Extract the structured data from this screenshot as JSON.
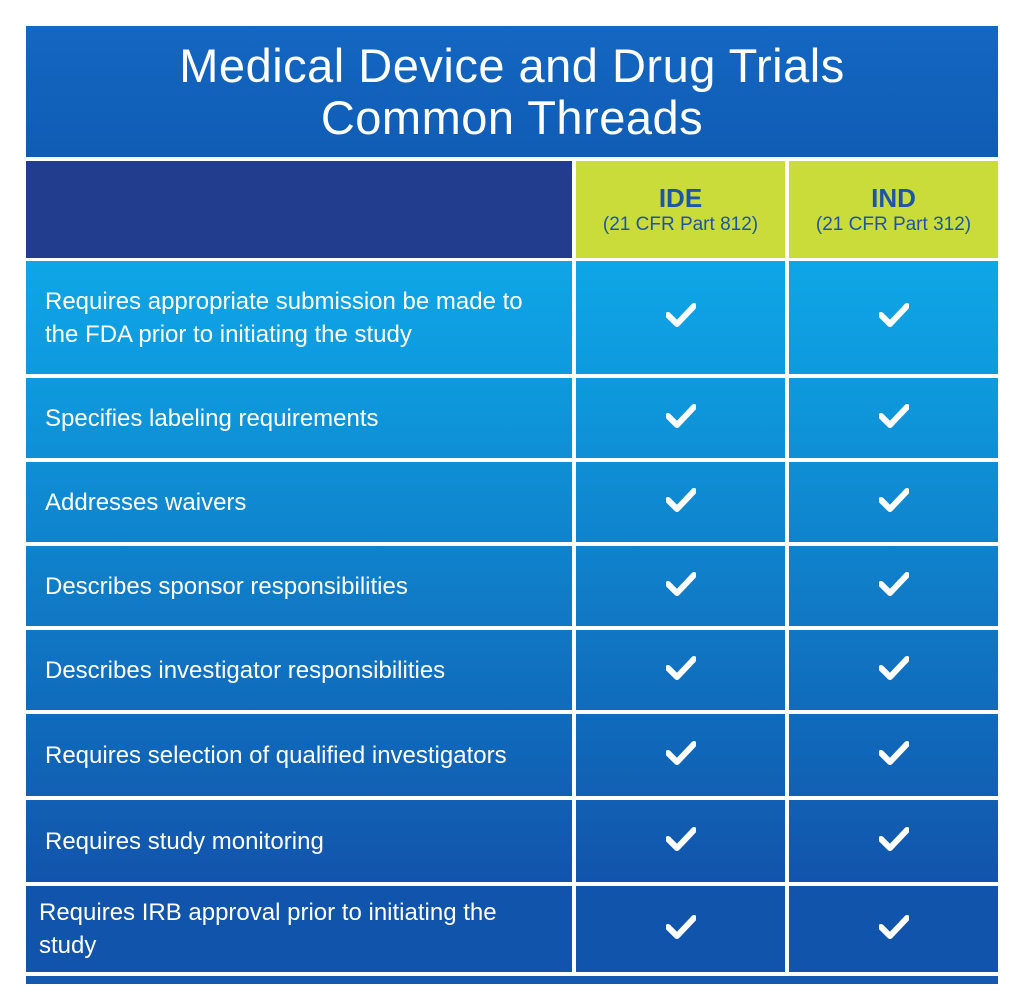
{
  "title": {
    "line1": "Medical Device and Drug Trials",
    "line2": "Common Threads"
  },
  "columns": [
    {
      "name": "IDE",
      "subtitle": "(21 CFR Part 812)"
    },
    {
      "name": "IND",
      "subtitle": "(21 CFR Part 312)"
    }
  ],
  "rows": [
    {
      "label": "Requires appropriate submission be made to the FDA prior to initiating the study",
      "ide": true,
      "ind": true
    },
    {
      "label": "Specifies labeling requirements",
      "ide": true,
      "ind": true
    },
    {
      "label": "Addresses waivers",
      "ide": true,
      "ind": true
    },
    {
      "label": "Describes sponsor responsibilities",
      "ide": true,
      "ind": true
    },
    {
      "label": "Describes investigator responsibilities",
      "ide": true,
      "ind": true
    },
    {
      "label": "Requires selection of qualified investigators",
      "ide": true,
      "ind": true
    },
    {
      "label": "Requires study monitoring",
      "ide": true,
      "ind": true
    },
    {
      "label": "Requires IRB approval prior to initiating the study",
      "ide": true,
      "ind": true
    }
  ],
  "icons": {
    "check": "checkmark-icon"
  },
  "colors": {
    "title_bg": "#1467c2",
    "header_blank_bg": "#233d8e",
    "header_col_bg": "#c9dc3a",
    "header_col_text": "#1e55a8",
    "row_top": "#0ea6e6",
    "row_bottom": "#1154ab"
  }
}
